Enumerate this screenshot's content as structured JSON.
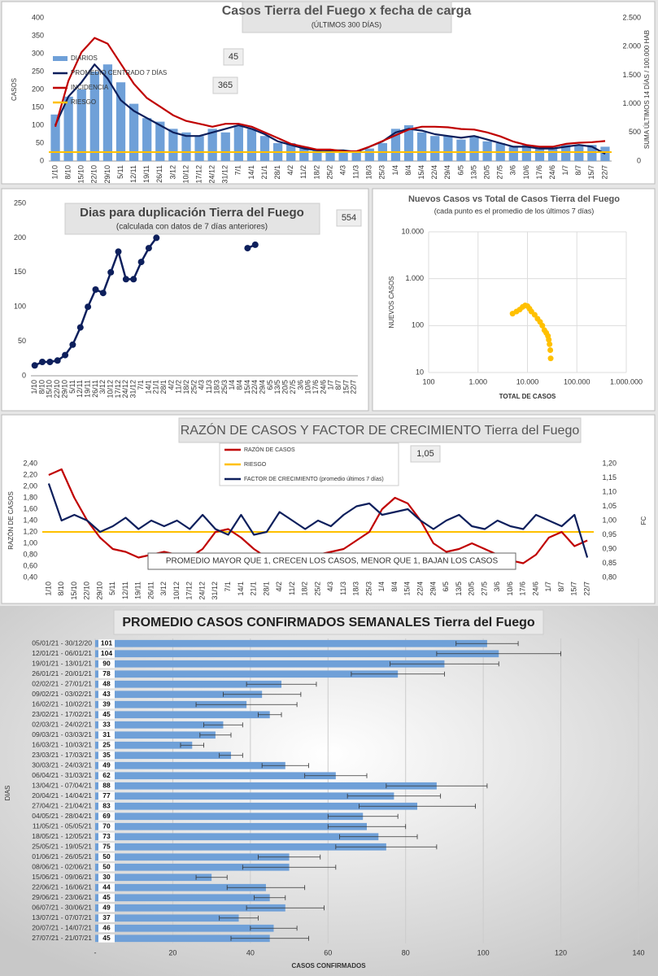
{
  "chart_data": [
    {
      "type": "combo",
      "title": "Casos Tierra del Fuego x fecha de carga",
      "subtitle": "(ÚLTIMOS 300 DÍAS)",
      "ylabel": "CASOS",
      "y2label": "SUMA ÚLTIMOS 14 DÍAS / 100.000 HAB",
      "categories": [
        "1/10",
        "8/10",
        "15/10",
        "22/10",
        "29/10",
        "5/11",
        "12/11",
        "19/11",
        "26/11",
        "3/12",
        "10/12",
        "17/12",
        "24/12",
        "31/12",
        "7/1",
        "14/1",
        "21/1",
        "28/1",
        "4/2",
        "11/2",
        "18/2",
        "25/2",
        "4/3",
        "11/3",
        "18/3",
        "25/3",
        "1/4",
        "8/4",
        "15/4",
        "22/4",
        "29/4",
        "6/5",
        "13/5",
        "20/5",
        "27/5",
        "3/6",
        "10/6",
        "17/6",
        "24/6",
        "1/7",
        "8/7",
        "15/7",
        "22/7"
      ],
      "series": [
        {
          "name": "DIARIOS",
          "color": "#6fa0d8",
          "kind": "bar",
          "values": [
            130,
            180,
            200,
            250,
            270,
            220,
            160,
            120,
            110,
            90,
            80,
            70,
            90,
            80,
            100,
            90,
            70,
            50,
            50,
            40,
            30,
            30,
            30,
            25,
            35,
            50,
            90,
            100,
            80,
            70,
            70,
            60,
            70,
            55,
            50,
            40,
            45,
            40,
            35,
            45,
            45,
            45,
            40
          ]
        },
        {
          "name": "PROMEDIO CENTRADO 7 DÍAS",
          "color": "#0d1f5c",
          "kind": "line",
          "values": [
            100,
            180,
            220,
            270,
            230,
            170,
            140,
            120,
            100,
            80,
            70,
            70,
            80,
            90,
            100,
            90,
            75,
            55,
            45,
            35,
            30,
            30,
            30,
            25,
            40,
            55,
            80,
            90,
            85,
            75,
            70,
            65,
            70,
            60,
            50,
            40,
            40,
            35,
            35,
            40,
            45,
            40,
            20
          ]
        },
        {
          "name": "INCIDENCIA",
          "color": "#c00000",
          "kind": "line",
          "axis": "y2",
          "values": [
            600,
            1400,
            1900,
            2150,
            2050,
            1700,
            1350,
            1100,
            950,
            800,
            700,
            650,
            600,
            650,
            650,
            600,
            500,
            400,
            300,
            250,
            200,
            200,
            170,
            170,
            250,
            350,
            450,
            550,
            600,
            600,
            590,
            560,
            550,
            500,
            430,
            340,
            280,
            250,
            250,
            300,
            320,
            330,
            350
          ]
        }
      ],
      "riesgo": {
        "name": "RIESGO",
        "color": "#ffc000",
        "value": 25
      },
      "annotations": [
        "45",
        "365"
      ],
      "ylim": [
        0,
        400
      ],
      "yticks": [
        0,
        50,
        100,
        150,
        200,
        250,
        300,
        350,
        400
      ],
      "y2lim": [
        0,
        2500
      ],
      "y2ticks": [
        0,
        500,
        {
          "value": 1000,
          "label": "1.000"
        },
        {
          "value": 1500,
          "label": "1.500"
        },
        {
          "value": 2000,
          "label": "2.000"
        },
        {
          "value": 2500,
          "label": "2.500"
        }
      ]
    },
    {
      "type": "line",
      "title": "Dias para duplicación Tierra del Fuego",
      "subtitle": "(calculada con datos de 7 días anteriores)",
      "annotation": "554",
      "categories": [
        "1/10",
        "8/10",
        "15/10",
        "22/10",
        "29/10",
        "5/11",
        "12/11",
        "19/11",
        "26/11",
        "3/12",
        "10/12",
        "17/12",
        "24/12",
        "31/12",
        "7/1",
        "14/1",
        "21/1",
        "28/1",
        "4/2",
        "11/2",
        "18/2",
        "25/2",
        "4/3",
        "11/3",
        "18/3",
        "25/3",
        "1/4",
        "8/4",
        "15/4",
        "22/4",
        "29/4",
        "6/5",
        "13/5",
        "20/5",
        "27/5",
        "3/6",
        "10/6",
        "17/6",
        "24/6",
        "1/7",
        "8/7",
        "15/7",
        "22/7"
      ],
      "series": [
        {
          "name": null,
          "color": "#0d1f5c",
          "values": [
            15,
            20,
            20,
            22,
            30,
            45,
            70,
            100,
            125,
            120,
            150,
            180,
            140,
            140,
            165,
            185,
            200,
            null,
            null,
            null,
            null,
            null,
            null,
            null,
            null,
            null,
            null,
            null,
            185,
            190,
            null,
            null,
            null,
            null,
            null,
            null,
            null,
            null,
            null,
            null,
            null,
            null,
            null
          ]
        }
      ],
      "ylim": [
        0,
        250
      ],
      "yticks": [
        0,
        50,
        100,
        150,
        200,
        250
      ]
    },
    {
      "type": "scatter",
      "title": "Nuevos Casos vs Total de Casos Tierra del Fuego",
      "subtitle": "(cada punto es el promedio de los últimos 7 días)",
      "xlabel": "TOTAL DE CASOS",
      "ylabel": "NUEVOS CASOS",
      "color": "#ffc000",
      "log": true,
      "x": [
        5000,
        6000,
        7000,
        8000,
        9000,
        10000,
        11000,
        12000,
        14000,
        16000,
        18000,
        20000,
        22000,
        24000,
        26000,
        27000,
        28000,
        29000,
        29500
      ],
      "y": [
        180,
        200,
        220,
        250,
        270,
        260,
        230,
        200,
        170,
        140,
        120,
        100,
        80,
        70,
        60,
        50,
        40,
        30,
        20
      ],
      "xlim": [
        100,
        1000000
      ],
      "xticks": [
        100,
        {
          "value": 1000,
          "label": "1.000"
        },
        {
          "value": 10000,
          "label": "10.000"
        },
        {
          "value": 100000,
          "label": "100.000"
        },
        {
          "value": 1000000,
          "label": "1.000.000"
        }
      ],
      "ylim": [
        10,
        10000
      ],
      "yticks": [
        10,
        100,
        {
          "value": 1000,
          "label": "1.000"
        },
        {
          "value": 10000,
          "label": "10.000"
        }
      ]
    },
    {
      "type": "line2",
      "title": "RAZÓN DE CASOS Y FACTOR DE CRECIMIENTO Tierra del Fuego",
      "ylabel": "RAZÓN DE CASOS",
      "y2label": "FC",
      "annotation": "1,05",
      "note": "PROMEDIO MAYOR QUE 1, CRECEN LOS CASOS, MENOR QUE 1, BAJAN LOS CASOS",
      "categories": [
        "1/10",
        "8/10",
        "15/10",
        "22/10",
        "29/10",
        "5/11",
        "12/11",
        "19/11",
        "26/11",
        "3/12",
        "10/12",
        "17/12",
        "24/12",
        "31/12",
        "7/1",
        "14/1",
        "21/1",
        "28/1",
        "4/2",
        "11/2",
        "18/2",
        "25/2",
        "4/3",
        "11/3",
        "18/3",
        "25/3",
        "1/4",
        "8/4",
        "15/4",
        "22/4",
        "29/4",
        "6/5",
        "13/5",
        "20/5",
        "27/5",
        "3/6",
        "10/6",
        "17/6",
        "24/6",
        "1/7",
        "8/7",
        "15/7",
        "22/7"
      ],
      "series": [
        {
          "name": "RAZÓN DE CASOS",
          "color": "#c00000",
          "values": [
            2.2,
            2.3,
            1.8,
            1.4,
            1.1,
            0.9,
            0.85,
            0.75,
            0.8,
            0.85,
            0.8,
            0.75,
            0.9,
            1.2,
            1.25,
            1.1,
            0.9,
            0.75,
            0.7,
            0.65,
            0.75,
            0.8,
            0.85,
            0.9,
            1.05,
            1.2,
            1.6,
            1.8,
            1.7,
            1.4,
            1.0,
            0.85,
            0.9,
            1.0,
            0.9,
            0.8,
            0.7,
            0.65,
            0.8,
            1.1,
            1.2,
            0.95,
            1.05
          ]
        },
        {
          "name": "FACTOR DE CRECIMIENTO (promedio últimos 7 días)",
          "color": "#0d1f5c",
          "axis": "y2",
          "values": [
            1.13,
            1.0,
            1.02,
            1.0,
            0.96,
            0.98,
            1.01,
            0.97,
            1.0,
            0.98,
            1.0,
            0.97,
            1.02,
            0.97,
            0.95,
            1.02,
            0.95,
            0.96,
            1.03,
            1.0,
            0.97,
            1.0,
            0.98,
            1.02,
            1.05,
            1.06,
            1.02,
            1.03,
            1.04,
            1.0,
            0.97,
            1.0,
            1.02,
            0.98,
            0.97,
            1.0,
            0.98,
            0.97,
            1.02,
            1.0,
            0.98,
            1.02,
            0.87
          ]
        }
      ],
      "riesgo": {
        "name": "RIESGO",
        "color": "#ffc000",
        "value": 1.2
      },
      "ylim": [
        0.4,
        2.4
      ],
      "yticks": [
        {
          "value": 0.4,
          "label": "0,40"
        },
        {
          "value": 0.6,
          "label": "0,60"
        },
        {
          "value": 0.8,
          "label": "0,80"
        },
        {
          "value": 1.0,
          "label": "1,00"
        },
        {
          "value": 1.2,
          "label": "1,20"
        },
        {
          "value": 1.4,
          "label": "1,40"
        },
        {
          "value": 1.6,
          "label": "1,60"
        },
        {
          "value": 1.8,
          "label": "1,80"
        },
        {
          "value": 2.0,
          "label": "2,00"
        },
        {
          "value": 2.2,
          "label": "2,20"
        },
        {
          "value": 2.4,
          "label": "2,40"
        }
      ],
      "y2lim": [
        0.8,
        1.2
      ],
      "y2ticks": [
        {
          "value": 0.8,
          "label": "0,80"
        },
        {
          "value": 0.85,
          "label": "0,85"
        },
        {
          "value": 0.9,
          "label": "0,90"
        },
        {
          "value": 0.95,
          "label": "0,95"
        },
        {
          "value": 1.0,
          "label": "1,00"
        },
        {
          "value": 1.05,
          "label": "1,05"
        },
        {
          "value": 1.1,
          "label": "1,10"
        },
        {
          "value": 1.15,
          "label": "1,15"
        },
        {
          "value": 1.2,
          "label": "1,20"
        }
      ]
    },
    {
      "type": "barh",
      "title": "PROMEDIO CASOS CONFIRMADOS SEMANALES Tierra del Fuego",
      "xlabel": "CASOS CONFIRMADOS",
      "ylabel": "DIAS",
      "color": "#6fa0d8",
      "categories": [
        "05/01/21 - 30/12/20",
        "12/01/21 - 06/01/21",
        "19/01/21 - 13/01/21",
        "26/01/21 - 20/01/21",
        "02/02/21 - 27/01/21",
        "09/02/21 - 03/02/21",
        "16/02/21 - 10/02/21",
        "23/02/21 - 17/02/21",
        "02/03/21 - 24/02/21",
        "09/03/21 - 03/03/21",
        "16/03/21 - 10/03/21",
        "23/03/21 - 17/03/21",
        "30/03/21 - 24/03/21",
        "06/04/21 - 31/03/21",
        "13/04/21 - 07/04/21",
        "20/04/21 - 14/04/21",
        "27/04/21 - 21/04/21",
        "04/05/21 - 28/04/21",
        "11/05/21 - 05/05/21",
        "18/05/21 - 12/05/21",
        "25/05/21 - 19/05/21",
        "01/06/21 - 26/05/21",
        "08/06/21 - 02/06/21",
        "15/06/21 - 09/06/21",
        "22/06/21 - 16/06/21",
        "29/06/21 - 23/06/21",
        "06/07/21 - 30/06/21",
        "13/07/21 - 07/07/21",
        "20/07/21 - 14/07/21",
        "27/07/21 - 21/07/21"
      ],
      "values": [
        101,
        104,
        90,
        78,
        48,
        43,
        39,
        45,
        33,
        31,
        25,
        35,
        49,
        62,
        88,
        77,
        83,
        69,
        70,
        73,
        75,
        50,
        50,
        30,
        44,
        45,
        49,
        37,
        46,
        45
      ],
      "errors": [
        8,
        16,
        14,
        12,
        9,
        10,
        13,
        3,
        5,
        4,
        3,
        3,
        6,
        8,
        13,
        12,
        15,
        9,
        10,
        10,
        13,
        8,
        12,
        4,
        10,
        4,
        10,
        5,
        6,
        10
      ],
      "xlim": [
        0,
        140
      ],
      "xticks": [
        {
          "value": 0,
          "label": "-"
        },
        20,
        40,
        60,
        80,
        100,
        120,
        140
      ]
    }
  ]
}
